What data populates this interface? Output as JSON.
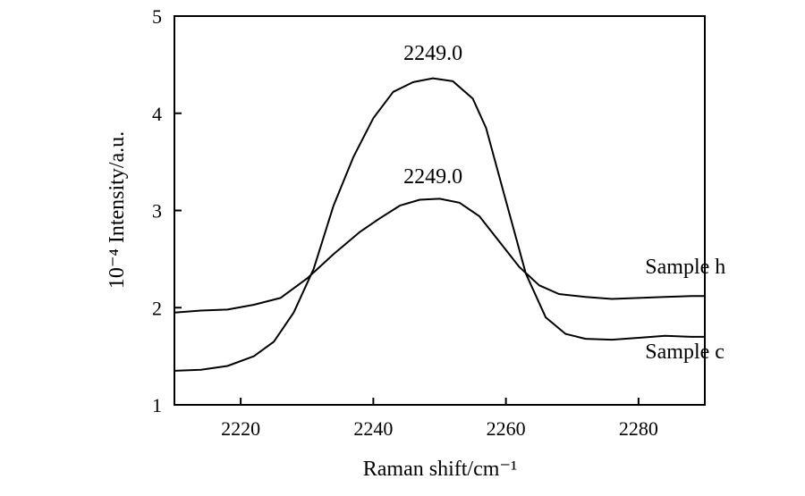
{
  "chart_data": {
    "type": "line",
    "xlabel": "Raman shift/cm⁻¹",
    "ylabel": "10⁻⁴ Intensity/a.u.",
    "xlim": [
      2210,
      2290
    ],
    "ylim": [
      1,
      5
    ],
    "xticks": [
      2220,
      2240,
      2260,
      2280
    ],
    "yticks": [
      1,
      2,
      3,
      4,
      5
    ],
    "grid": false,
    "series": [
      {
        "name": "Sample h",
        "points": [
          [
            2210,
            1.95
          ],
          [
            2214,
            1.97
          ],
          [
            2218,
            1.98
          ],
          [
            2222,
            2.03
          ],
          [
            2226,
            2.1
          ],
          [
            2230,
            2.3
          ],
          [
            2234,
            2.55
          ],
          [
            2238,
            2.78
          ],
          [
            2241,
            2.92
          ],
          [
            2244,
            3.05
          ],
          [
            2247,
            3.11
          ],
          [
            2250,
            3.12
          ],
          [
            2253,
            3.08
          ],
          [
            2256,
            2.94
          ],
          [
            2259,
            2.68
          ],
          [
            2262,
            2.42
          ],
          [
            2265,
            2.23
          ],
          [
            2268,
            2.14
          ],
          [
            2272,
            2.11
          ],
          [
            2276,
            2.09
          ],
          [
            2280,
            2.1
          ],
          [
            2284,
            2.11
          ],
          [
            2288,
            2.12
          ],
          [
            2290,
            2.12
          ]
        ]
      },
      {
        "name": "Sample c",
        "points": [
          [
            2210,
            1.35
          ],
          [
            2214,
            1.36
          ],
          [
            2218,
            1.4
          ],
          [
            2222,
            1.5
          ],
          [
            2225,
            1.65
          ],
          [
            2228,
            1.95
          ],
          [
            2231,
            2.4
          ],
          [
            2234,
            3.05
          ],
          [
            2237,
            3.55
          ],
          [
            2240,
            3.95
          ],
          [
            2243,
            4.22
          ],
          [
            2246,
            4.32
          ],
          [
            2249,
            4.36
          ],
          [
            2252,
            4.33
          ],
          [
            2255,
            4.15
          ],
          [
            2257,
            3.85
          ],
          [
            2260,
            3.1
          ],
          [
            2263,
            2.35
          ],
          [
            2266,
            1.9
          ],
          [
            2269,
            1.73
          ],
          [
            2272,
            1.68
          ],
          [
            2276,
            1.67
          ],
          [
            2280,
            1.69
          ],
          [
            2284,
            1.71
          ],
          [
            2288,
            1.7
          ],
          [
            2290,
            1.7
          ]
        ]
      }
    ],
    "annotations": [
      {
        "text": "2249.0",
        "x": 2249,
        "y": 4.55
      },
      {
        "text": "2249.0",
        "x": 2249,
        "y": 3.28
      },
      {
        "text": "Sample h",
        "x": 2281,
        "y": 2.35
      },
      {
        "text": "Sample c",
        "x": 2281,
        "y": 1.48
      }
    ]
  }
}
